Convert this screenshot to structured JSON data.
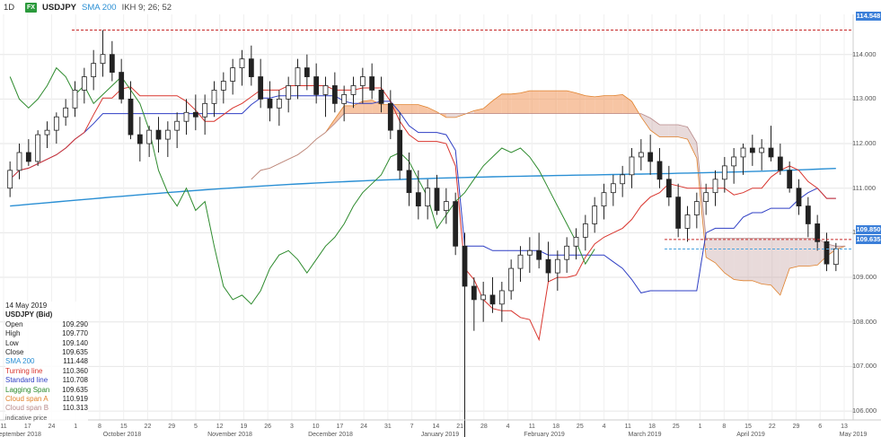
{
  "toolbar": {
    "timeframe": "1D",
    "symbol": "USDJPY",
    "sma_label": "SMA 200",
    "ikh_label": "IKH 9; 26; 52",
    "fx_icon": "fx-flag-icon"
  },
  "info_panel": {
    "date": "14 May 2019",
    "instrument": "USDJPY (Bid)",
    "rows": [
      {
        "label": "Open",
        "value": "109.290",
        "color": "#222222"
      },
      {
        "label": "High",
        "value": "109.770",
        "color": "#222222"
      },
      {
        "label": "Low",
        "value": "109.140",
        "color": "#222222"
      },
      {
        "label": "Close",
        "value": "109.635",
        "color": "#222222"
      },
      {
        "label": "SMA 200",
        "value": "111.448",
        "color": "#2a8fd4"
      },
      {
        "label": "Turning line",
        "value": "110.360",
        "color": "#d9362f"
      },
      {
        "label": "Standard line",
        "value": "110.708",
        "color": "#2f3fc4"
      },
      {
        "label": "Lagging Span",
        "value": "109.635",
        "color": "#2e8b2e"
      },
      {
        "label": "Cloud span A",
        "value": "110.919",
        "color": "#e0802a"
      },
      {
        "label": "Cloud span B",
        "value": "110.313",
        "color": "#b88a8a"
      }
    ],
    "footnote": "indicative price"
  },
  "price_tags": [
    {
      "value": "114.548",
      "color": "#3b7fd9"
    },
    {
      "value": "109.850",
      "color": "#3b7fd9"
    },
    {
      "value": "109.635",
      "color": "#3b7fd9"
    }
  ],
  "chart_data": {
    "type": "candlestick",
    "title": "USDJPY",
    "ylim": [
      105.8,
      114.9
    ],
    "yticks": [
      "114.000",
      "113.000",
      "112.000",
      "111.000",
      "110.000",
      "109.000",
      "108.000",
      "107.000",
      "106.000"
    ],
    "ytick_values": [
      114,
      113,
      112,
      111,
      110,
      109,
      108,
      107,
      106
    ],
    "xtick_days": [
      "11",
      "17",
      "24",
      "1",
      "8",
      "15",
      "22",
      "29",
      "5",
      "12",
      "19",
      "26",
      "3",
      "10",
      "17",
      "24",
      "31",
      "7",
      "14",
      "21",
      "28",
      "4",
      "11",
      "18",
      "25",
      "4",
      "11",
      "18",
      "25",
      "1",
      "8",
      "15",
      "22",
      "29",
      "6",
      "13"
    ],
    "xtick_months": [
      "September 2018",
      "October 2018",
      "November 2018",
      "December 2018",
      "January 2019",
      "February 2019",
      "March 2019",
      "April 2019",
      "May 2019"
    ],
    "hlines": [
      {
        "value": 114.548,
        "style": "dashed",
        "color": "#c62828"
      },
      {
        "value": 109.85,
        "style": "dashed",
        "color": "#c62828"
      },
      {
        "value": 109.635,
        "style": "dashed",
        "color": "#4aa3df"
      }
    ],
    "grid": true,
    "candles": [
      [
        111.0,
        111.6,
        110.8,
        111.4
      ],
      [
        111.4,
        112.0,
        111.2,
        111.8
      ],
      [
        111.8,
        112.1,
        111.5,
        111.6
      ],
      [
        111.6,
        112.3,
        111.5,
        112.2
      ],
      [
        112.2,
        112.5,
        111.9,
        112.3
      ],
      [
        112.3,
        112.7,
        112.0,
        112.6
      ],
      [
        112.6,
        113.0,
        112.4,
        112.8
      ],
      [
        112.8,
        113.4,
        112.6,
        113.2
      ],
      [
        113.2,
        113.7,
        112.9,
        113.5
      ],
      [
        113.5,
        114.1,
        113.2,
        113.8
      ],
      [
        113.8,
        114.548,
        113.5,
        114.0
      ],
      [
        114.0,
        114.3,
        113.4,
        113.6
      ],
      [
        113.6,
        113.9,
        112.9,
        113.0
      ],
      [
        113.0,
        113.4,
        112.1,
        112.2
      ],
      [
        112.2,
        112.6,
        111.6,
        112.0
      ],
      [
        112.0,
        112.4,
        111.7,
        112.3
      ],
      [
        112.3,
        112.6,
        111.8,
        112.1
      ],
      [
        112.1,
        112.5,
        111.7,
        112.3
      ],
      [
        112.3,
        112.7,
        111.9,
        112.5
      ],
      [
        112.5,
        113.0,
        112.2,
        112.7
      ],
      [
        112.7,
        113.1,
        112.3,
        112.6
      ],
      [
        112.6,
        113.1,
        112.2,
        112.9
      ],
      [
        112.9,
        113.4,
        112.6,
        113.2
      ],
      [
        113.2,
        113.6,
        112.9,
        113.4
      ],
      [
        113.4,
        113.9,
        113.1,
        113.7
      ],
      [
        113.7,
        114.1,
        113.3,
        113.9
      ],
      [
        113.9,
        114.2,
        113.3,
        113.5
      ],
      [
        113.5,
        113.9,
        112.8,
        113.0
      ],
      [
        113.0,
        113.4,
        112.5,
        112.8
      ],
      [
        112.8,
        113.2,
        112.4,
        113.0
      ],
      [
        113.0,
        113.5,
        112.7,
        113.3
      ],
      [
        113.3,
        113.9,
        113.0,
        113.7
      ],
      [
        113.7,
        114.0,
        113.2,
        113.5
      ],
      [
        113.5,
        113.8,
        112.9,
        113.1
      ],
      [
        113.1,
        113.5,
        112.6,
        113.3
      ],
      [
        113.3,
        113.6,
        112.7,
        112.9
      ],
      [
        112.9,
        113.3,
        112.5,
        113.1
      ],
      [
        113.1,
        113.5,
        112.8,
        113.3
      ],
      [
        113.3,
        113.7,
        112.9,
        113.5
      ],
      [
        113.5,
        113.8,
        113.0,
        113.2
      ],
      [
        113.2,
        113.5,
        112.7,
        112.9
      ],
      [
        112.9,
        113.2,
        112.1,
        112.3
      ],
      [
        112.3,
        112.7,
        111.2,
        111.4
      ],
      [
        111.4,
        111.8,
        110.6,
        110.9
      ],
      [
        110.9,
        111.4,
        110.3,
        110.6
      ],
      [
        110.6,
        111.2,
        110.3,
        111.0
      ],
      [
        111.0,
        111.3,
        110.4,
        110.5
      ],
      [
        110.5,
        111.0,
        110.2,
        110.7
      ],
      [
        110.7,
        110.9,
        109.5,
        109.7
      ],
      [
        109.7,
        110.0,
        105.2,
        108.8
      ],
      [
        108.8,
        109.0,
        107.8,
        108.5
      ],
      [
        108.5,
        108.9,
        108.0,
        108.6
      ],
      [
        108.6,
        109.0,
        108.2,
        108.4
      ],
      [
        108.4,
        108.9,
        108.0,
        108.7
      ],
      [
        108.7,
        109.4,
        108.5,
        109.2
      ],
      [
        109.2,
        109.7,
        108.9,
        109.5
      ],
      [
        109.5,
        109.9,
        109.1,
        109.6
      ],
      [
        109.6,
        110.0,
        109.2,
        109.4
      ],
      [
        109.4,
        109.8,
        108.9,
        109.1
      ],
      [
        109.1,
        109.6,
        108.7,
        109.4
      ],
      [
        109.4,
        109.9,
        109.1,
        109.7
      ],
      [
        109.7,
        110.1,
        109.4,
        109.9
      ],
      [
        109.9,
        110.4,
        109.6,
        110.2
      ],
      [
        110.2,
        110.8,
        110.0,
        110.6
      ],
      [
        110.6,
        111.1,
        110.3,
        110.9
      ],
      [
        110.9,
        111.3,
        110.6,
        111.1
      ],
      [
        111.1,
        111.5,
        110.8,
        111.3
      ],
      [
        111.3,
        111.9,
        111.0,
        111.7
      ],
      [
        111.7,
        112.1,
        111.4,
        111.8
      ],
      [
        111.8,
        112.2,
        111.3,
        111.6
      ],
      [
        111.6,
        111.9,
        111.0,
        111.2
      ],
      [
        111.2,
        111.5,
        110.6,
        110.8
      ],
      [
        110.8,
        111.1,
        109.9,
        110.1
      ],
      [
        110.1,
        110.6,
        109.8,
        110.4
      ],
      [
        110.4,
        110.9,
        110.1,
        110.7
      ],
      [
        110.7,
        111.1,
        110.4,
        110.9
      ],
      [
        110.9,
        111.4,
        110.6,
        111.2
      ],
      [
        111.2,
        111.7,
        110.9,
        111.5
      ],
      [
        111.5,
        111.9,
        111.1,
        111.7
      ],
      [
        111.7,
        112.0,
        111.3,
        111.9
      ],
      [
        111.9,
        112.2,
        111.5,
        111.8
      ],
      [
        111.8,
        112.1,
        111.4,
        111.9
      ],
      [
        111.9,
        112.4,
        111.6,
        111.7
      ],
      [
        111.7,
        112.0,
        111.3,
        111.4
      ],
      [
        111.4,
        111.6,
        110.9,
        111.0
      ],
      [
        111.0,
        111.2,
        110.4,
        110.6
      ],
      [
        110.6,
        110.8,
        109.9,
        110.2
      ],
      [
        110.2,
        110.4,
        109.6,
        109.8
      ],
      [
        109.8,
        110.0,
        109.14,
        109.3
      ],
      [
        109.29,
        109.77,
        109.14,
        109.635
      ]
    ]
  }
}
